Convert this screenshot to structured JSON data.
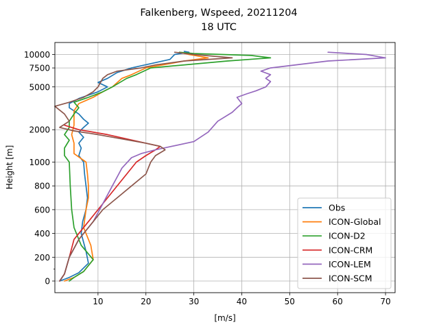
{
  "chart_data": {
    "type": "line",
    "title": "Falkenberg, Wspeed, 20211204",
    "subtitle": "18 UTC",
    "xlabel": "[m/s]",
    "ylabel": "Height [m]",
    "xlim": [
      1,
      72
    ],
    "x_ticks": [
      10,
      20,
      30,
      40,
      50,
      60,
      70
    ],
    "y_scale": "piecewise: linear 0-1000 m, logarithmic above 1000 m",
    "y_ticks": [
      0,
      200,
      400,
      600,
      800,
      1000,
      2000,
      5000,
      7500,
      10000
    ],
    "y_tick_labels": [
      "0",
      "200",
      "400",
      "600",
      "800",
      "1000",
      "2000",
      "5000",
      "7500",
      "10000"
    ],
    "grid": true,
    "legend_position": "lower right",
    "series": [
      {
        "name": "Obs",
        "color": "#1f77b4",
        "points": [
          [
            2,
            0
          ],
          [
            4,
            30
          ],
          [
            6,
            70
          ],
          [
            8,
            150
          ],
          [
            7.5,
            250
          ],
          [
            6.5,
            400
          ],
          [
            6.8,
            500
          ],
          [
            7.5,
            600
          ],
          [
            7.8,
            700
          ],
          [
            7.5,
            800
          ],
          [
            7.2,
            900
          ],
          [
            7,
            1000
          ],
          [
            6,
            1150
          ],
          [
            6.5,
            1350
          ],
          [
            6,
            1500
          ],
          [
            7,
            1700
          ],
          [
            6,
            1900
          ],
          [
            7,
            2100
          ],
          [
            8,
            2300
          ],
          [
            7,
            2500
          ],
          [
            6,
            2800
          ],
          [
            4,
            3200
          ],
          [
            4,
            3500
          ],
          [
            6,
            3900
          ],
          [
            10,
            4500
          ],
          [
            12,
            5000
          ],
          [
            10,
            5500
          ],
          [
            12,
            6000
          ],
          [
            14,
            6800
          ],
          [
            17,
            7500
          ],
          [
            25,
            9000
          ],
          [
            26,
            10000
          ],
          [
            29,
            10500
          ],
          [
            28,
            10700
          ]
        ]
      },
      {
        "name": "ICON-Global",
        "color": "#ff7f0e",
        "points": [
          [
            3,
            0
          ],
          [
            5,
            30
          ],
          [
            7,
            80
          ],
          [
            9,
            180
          ],
          [
            8.5,
            300
          ],
          [
            7,
            450
          ],
          [
            7.5,
            600
          ],
          [
            8,
            700
          ],
          [
            8,
            800
          ],
          [
            7.8,
            900
          ],
          [
            7.5,
            1000
          ],
          [
            5,
            1200
          ],
          [
            5,
            1500
          ],
          [
            4.5,
            1800
          ],
          [
            5,
            2200
          ],
          [
            5,
            2600
          ],
          [
            5,
            3000
          ],
          [
            6,
            3500
          ],
          [
            9,
            4000
          ],
          [
            11,
            4500
          ],
          [
            13,
            5000
          ],
          [
            15,
            6000
          ],
          [
            17,
            6500
          ],
          [
            20,
            7500
          ],
          [
            28,
            8700
          ],
          [
            33,
            9300
          ],
          [
            29,
            10000
          ],
          [
            27,
            10500
          ]
        ]
      },
      {
        "name": "ICON-D2",
        "color": "#2ca02c",
        "points": [
          [
            4,
            0
          ],
          [
            5,
            30
          ],
          [
            7,
            80
          ],
          [
            9,
            180
          ],
          [
            6.5,
            300
          ],
          [
            5,
            450
          ],
          [
            4.5,
            600
          ],
          [
            4.2,
            800
          ],
          [
            4,
            1000
          ],
          [
            3,
            1150
          ],
          [
            3,
            1350
          ],
          [
            4,
            1600
          ],
          [
            3,
            1800
          ],
          [
            4,
            2100
          ],
          [
            4,
            2400
          ],
          [
            5,
            2800
          ],
          [
            6,
            3200
          ],
          [
            5,
            3600
          ],
          [
            8,
            4000
          ],
          [
            11,
            4500
          ],
          [
            13,
            5000
          ],
          [
            16,
            6000
          ],
          [
            18,
            6500
          ],
          [
            21,
            7500
          ],
          [
            37,
            8700
          ],
          [
            46,
            9300
          ],
          [
            42,
            9800
          ],
          [
            30,
            10200
          ],
          [
            27,
            10500
          ]
        ]
      },
      {
        "name": "ICON-CRM",
        "color": "#d62728",
        "points": [
          [
            2,
            0
          ],
          [
            3,
            60
          ],
          [
            4,
            200
          ],
          [
            5,
            350
          ],
          [
            8,
            500
          ],
          [
            10,
            600
          ],
          [
            13,
            750
          ],
          [
            16,
            900
          ],
          [
            18,
            1000
          ],
          [
            20,
            1150
          ],
          [
            22,
            1300
          ],
          [
            23,
            1400
          ],
          [
            20,
            1500
          ],
          [
            12,
            1800
          ],
          [
            6,
            2000
          ],
          [
            3,
            2200
          ]
        ]
      },
      {
        "name": "ICON-LEM",
        "color": "#9467bd",
        "points": [
          [
            2,
            0
          ],
          [
            3,
            60
          ],
          [
            4,
            200
          ],
          [
            6,
            350
          ],
          [
            9,
            500
          ],
          [
            11,
            650
          ],
          [
            13,
            800
          ],
          [
            15,
            950
          ],
          [
            17,
            1100
          ],
          [
            19,
            1200
          ],
          [
            22,
            1300
          ],
          [
            30,
            1550
          ],
          [
            33,
            1900
          ],
          [
            35,
            2400
          ],
          [
            38,
            2900
          ],
          [
            39,
            3200
          ],
          [
            40,
            3500
          ],
          [
            39,
            4000
          ],
          [
            41,
            4300
          ],
          [
            43,
            4600
          ],
          [
            45,
            5000
          ],
          [
            46,
            5600
          ],
          [
            45,
            6000
          ],
          [
            46,
            6500
          ],
          [
            44,
            7000
          ],
          [
            46,
            7500
          ],
          [
            58,
            8700
          ],
          [
            70,
            9300
          ],
          [
            66,
            10000
          ],
          [
            58,
            10500
          ]
        ]
      },
      {
        "name": "ICON-SCM",
        "color": "#8c564b",
        "points": [
          [
            2,
            0
          ],
          [
            3,
            60
          ],
          [
            4,
            200
          ],
          [
            6,
            350
          ],
          [
            9,
            500
          ],
          [
            11,
            600
          ],
          [
            14,
            700
          ],
          [
            17,
            800
          ],
          [
            20,
            900
          ],
          [
            21,
            1000
          ],
          [
            22,
            1150
          ],
          [
            24,
            1300
          ],
          [
            23,
            1400
          ],
          [
            20,
            1500
          ],
          [
            10,
            1800
          ],
          [
            5,
            1950
          ],
          [
            2,
            2100
          ],
          [
            4,
            2400
          ],
          [
            3,
            2800
          ],
          [
            1,
            3300
          ],
          [
            4,
            3600
          ],
          [
            7,
            4000
          ],
          [
            9,
            4500
          ],
          [
            10,
            5000
          ],
          [
            11,
            6000
          ],
          [
            12,
            6500
          ],
          [
            14,
            7000
          ],
          [
            19,
            7500
          ],
          [
            22,
            8000
          ],
          [
            28,
            8700
          ],
          [
            38,
            9300
          ],
          [
            30,
            10000
          ],
          [
            26,
            10500
          ]
        ]
      }
    ]
  }
}
